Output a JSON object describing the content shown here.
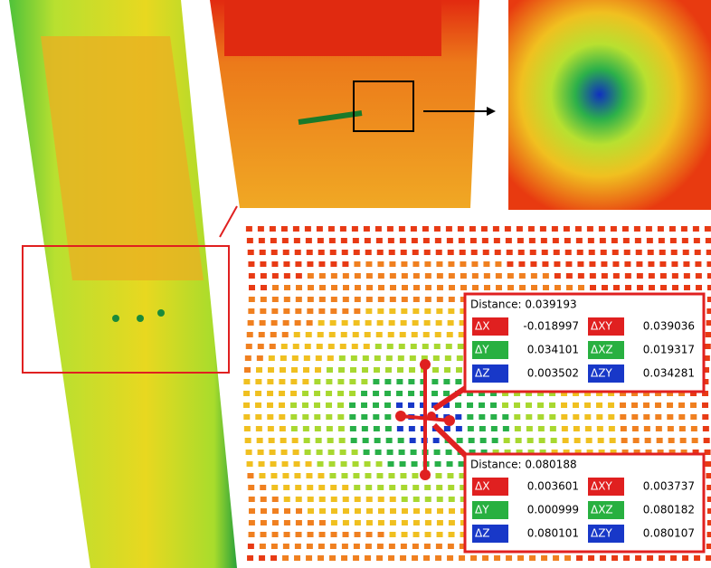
{
  "measurements": [
    {
      "title": "Distance: 0.039193",
      "items": [
        {
          "label": "ΔX",
          "value": "-0.018997"
        },
        {
          "label": "ΔXY",
          "value": "0.039036"
        },
        {
          "label": "ΔY",
          "value": "0.034101"
        },
        {
          "label": "ΔXZ",
          "value": "0.019317"
        },
        {
          "label": "ΔZ",
          "value": "0.003502"
        },
        {
          "label": "ΔZY",
          "value": "0.034281"
        }
      ]
    },
    {
      "title": "Distance: 0.080188",
      "items": [
        {
          "label": "ΔX",
          "value": "0.003601"
        },
        {
          "label": "ΔXY",
          "value": "0.003737"
        },
        {
          "label": "ΔY",
          "value": "0.000999"
        },
        {
          "label": "ΔXZ",
          "value": "0.080182"
        },
        {
          "label": "ΔZ",
          "value": "0.080101"
        },
        {
          "label": "ΔZY",
          "value": "0.080107"
        }
      ]
    }
  ]
}
